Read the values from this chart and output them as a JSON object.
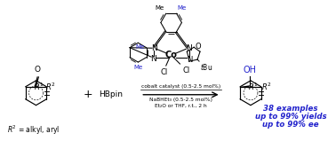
{
  "bg_color": "#ffffff",
  "black": "#000000",
  "blue": "#2222cc",
  "gray": "#888888",
  "reaction_conditions_line1": "cobalt catalyst (0.5-2.5 mol%)",
  "reaction_conditions_line2": "NaBHEt₃ (0.5-2.5 mol%)",
  "reaction_conditions_line3": "Et₂O or THF, r.t., 2 h",
  "results_line1": "38 examples",
  "results_line2": "up to 99% yields",
  "results_line3": "up to 99% ee",
  "fig_width": 3.78,
  "fig_height": 1.59,
  "dpi": 100
}
